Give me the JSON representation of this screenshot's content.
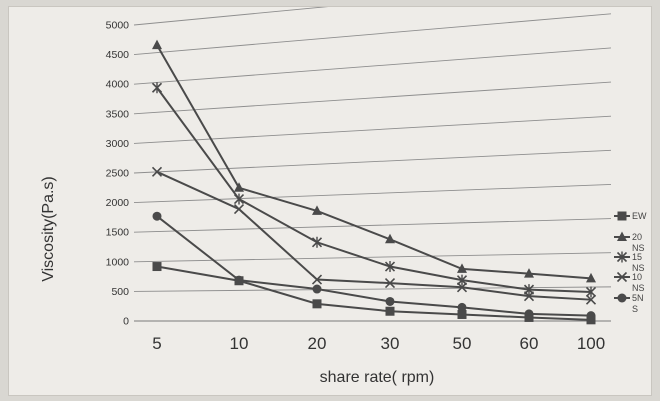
{
  "chart_data": {
    "type": "line",
    "title": "",
    "xlabel": "share rate( rpm)",
    "ylabel": "Viscosity(Pa.s)",
    "categories": [
      "5",
      "10",
      "20",
      "30",
      "50",
      "60",
      "100"
    ],
    "yticks": [
      "0",
      "500",
      "1000",
      "1500",
      "2000",
      "2500",
      "3000",
      "3500",
      "4000",
      "4500",
      "5000"
    ],
    "ylim": [
      0,
      5000
    ],
    "grid": true,
    "legend_position": "right",
    "series": [
      {
        "name": "EW",
        "marker": "square",
        "values": [
          920,
          680,
          290,
          165,
          110,
          60,
          20
        ]
      },
      {
        "name": "20 NS",
        "marker": "triangle",
        "values": [
          4660,
          2250,
          1860,
          1380,
          880,
          800,
          720
        ]
      },
      {
        "name": "15 NS",
        "marker": "star",
        "values": [
          3940,
          2060,
          1330,
          920,
          690,
          530,
          490
        ]
      },
      {
        "name": "10 NS",
        "marker": "x",
        "values": [
          2520,
          1890,
          700,
          640,
          570,
          420,
          360
        ]
      },
      {
        "name": "5N S",
        "marker": "circle",
        "values": [
          1770,
          690,
          540,
          330,
          230,
          120,
          90
        ]
      }
    ],
    "colors": {
      "series": "#4a4a4a",
      "grid": "#8e8e8e",
      "axis": "#7a7a7a",
      "background": "#eeece8"
    }
  }
}
